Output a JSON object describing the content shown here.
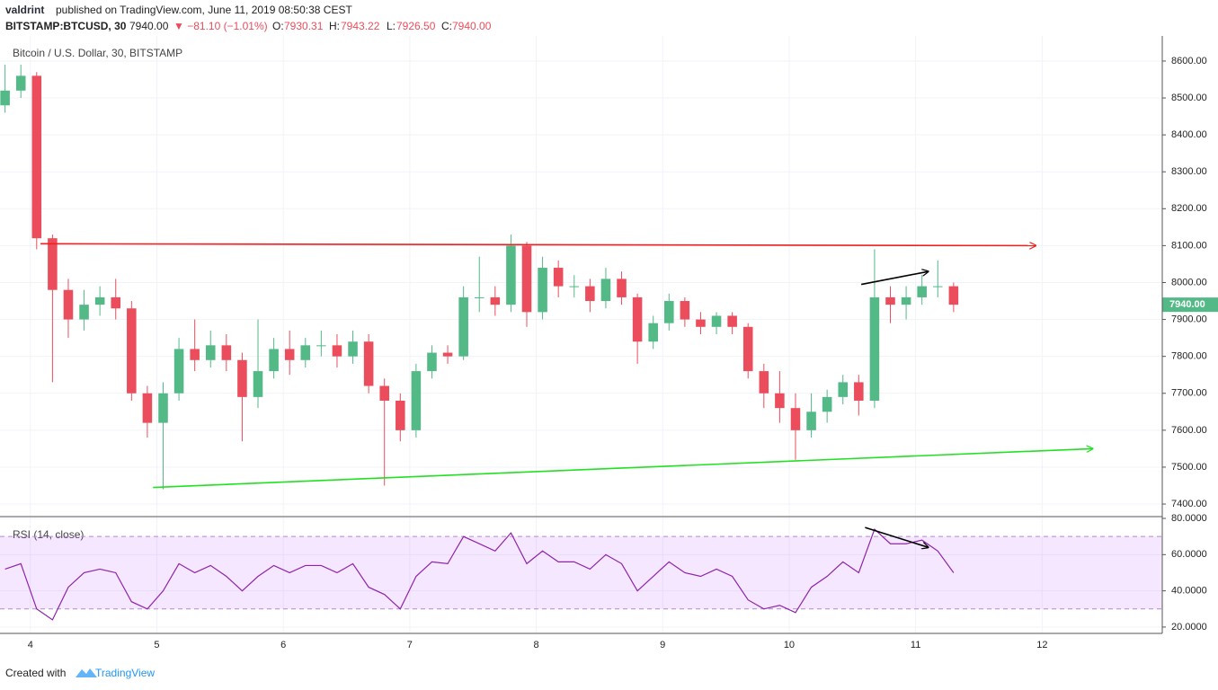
{
  "header": {
    "publisher": "valdrint",
    "published": "published on TradingView.com, June 11, 2019 08:50:38 CEST",
    "symbol": "BITSTAMP:BTCUSD, 30",
    "price": "7940.00",
    "change": "▼ −81.10 (−1.01%)",
    "o_key": "O:",
    "o": "7930.31",
    "h_key": "H:",
    "h": "7943.22",
    "l_key": "L:",
    "l": "7926.50",
    "c_key": "C:",
    "c": "7940.00"
  },
  "footer": {
    "created": "Created with",
    "brand": "TradingView"
  },
  "chart_data": [
    {
      "type": "candlestick",
      "title": "Bitcoin / U.S. Dollar, 30, BITSTAMP",
      "x": [
        3.8,
        3.925,
        4.05,
        4.175,
        4.3,
        4.425,
        4.55,
        4.675,
        4.8,
        4.925,
        5.05,
        5.175,
        5.3,
        5.425,
        5.55,
        5.675,
        5.8,
        5.925,
        6.05,
        6.175,
        6.3,
        6.425,
        6.55,
        6.675,
        6.8,
        6.925,
        7.05,
        7.175,
        7.3,
        7.425,
        7.55,
        7.675,
        7.8,
        7.925,
        8.05,
        8.175,
        8.3,
        8.425,
        8.55,
        8.675,
        8.8,
        8.925,
        9.05,
        9.175,
        9.3,
        9.425,
        9.55,
        9.675,
        9.8,
        9.925,
        10.05,
        10.175,
        10.3,
        10.425,
        10.55,
        10.675,
        10.8,
        10.925,
        11.05,
        11.175,
        11.3
      ],
      "open": [
        8480,
        8520,
        8560,
        8120,
        7980,
        7900,
        7940,
        7960,
        7930,
        7700,
        7620,
        7700,
        7820,
        7790,
        7830,
        7790,
        7690,
        7760,
        7820,
        7790,
        7830,
        7830,
        7800,
        7840,
        7720,
        7680,
        7600,
        7760,
        7810,
        7800,
        7960,
        7960,
        7940,
        8100,
        7920,
        8040,
        7990,
        7990,
        7950,
        8010,
        7960,
        7840,
        7890,
        7950,
        7900,
        7880,
        7910,
        7880,
        7760,
        7700,
        7660,
        7600,
        7650,
        7690,
        7730,
        7680,
        7960,
        7940,
        7960,
        7990,
        7990
      ],
      "high": [
        8590,
        8590,
        8570,
        8130,
        8010,
        7980,
        7990,
        8010,
        7950,
        7720,
        7730,
        7850,
        7900,
        7870,
        7860,
        7810,
        7900,
        7850,
        7870,
        7850,
        7870,
        7860,
        7870,
        7860,
        7740,
        7700,
        7780,
        7830,
        7830,
        7990,
        8070,
        7990,
        8130,
        8110,
        8070,
        8060,
        8020,
        8010,
        8040,
        8030,
        7970,
        7910,
        7970,
        7960,
        7920,
        7920,
        7920,
        7890,
        7780,
        7760,
        7700,
        7700,
        7710,
        7750,
        7750,
        8090,
        7990,
        7990,
        8020,
        8060,
        8000
      ],
      "low": [
        8460,
        8500,
        8090,
        7730,
        7850,
        7870,
        7910,
        7900,
        7680,
        7580,
        7440,
        7680,
        7760,
        7770,
        7760,
        7570,
        7660,
        7740,
        7750,
        7770,
        7800,
        7770,
        7780,
        7700,
        7450,
        7570,
        7580,
        7740,
        7780,
        7790,
        7920,
        7910,
        7920,
        7880,
        7900,
        7960,
        7960,
        7920,
        7930,
        7940,
        7780,
        7820,
        7870,
        7880,
        7860,
        7860,
        7860,
        7740,
        7660,
        7620,
        7520,
        7580,
        7620,
        7670,
        7640,
        7660,
        7890,
        7900,
        7940,
        7960,
        7920
      ],
      "close": [
        8520,
        8560,
        8120,
        7980,
        7900,
        7940,
        7960,
        7930,
        7700,
        7620,
        7700,
        7820,
        7790,
        7830,
        7790,
        7690,
        7760,
        7820,
        7790,
        7830,
        7830,
        7800,
        7840,
        7720,
        7680,
        7600,
        7760,
        7810,
        7800,
        7960,
        7960,
        7940,
        8100,
        7920,
        8040,
        7990,
        7990,
        7950,
        8010,
        7960,
        7840,
        7890,
        7950,
        7900,
        7880,
        7910,
        7880,
        7760,
        7700,
        7660,
        7600,
        7650,
        7690,
        7730,
        7680,
        7960,
        7940,
        7960,
        7990,
        7990,
        7940
      ],
      "up_color": "#53b987",
      "down_color": "#eb4d5c",
      "last_label": "7940.00",
      "xlim": [
        3.76,
        12.95
      ],
      "ylim": [
        7366,
        8668
      ],
      "yticks": [
        {
          "value": 7400,
          "label": "7400.00"
        },
        {
          "value": 7500,
          "label": "7500.00"
        },
        {
          "value": 7600,
          "label": "7600.00"
        },
        {
          "value": 7700,
          "label": "7700.00"
        },
        {
          "value": 7800,
          "label": "7800.00"
        },
        {
          "value": 7900,
          "label": "7900.00"
        },
        {
          "value": 8000,
          "label": "8000.00"
        },
        {
          "value": 8100,
          "label": "8100.00"
        },
        {
          "value": 8200,
          "label": "8200.00"
        },
        {
          "value": 8300,
          "label": "8300.00"
        },
        {
          "value": 8400,
          "label": "8400.00"
        },
        {
          "value": 8500,
          "label": "8500.00"
        },
        {
          "value": 8600,
          "label": "8600.00"
        }
      ],
      "grid": true,
      "drawings": [
        {
          "color": "#f21f1f",
          "x": [
            4.08,
            11.95
          ],
          "y": [
            8105,
            8100
          ]
        },
        {
          "color": "#22e022",
          "x": [
            4.97,
            12.4
          ],
          "y": [
            7445,
            7550
          ]
        },
        {
          "color": "#000000",
          "x": [
            10.57,
            11.1
          ],
          "y": [
            7995,
            8030
          ]
        }
      ]
    },
    {
      "type": "line",
      "title": "RSI (14, close)",
      "x": [
        3.8,
        3.925,
        4.05,
        4.175,
        4.3,
        4.425,
        4.55,
        4.675,
        4.8,
        4.925,
        5.05,
        5.175,
        5.3,
        5.425,
        5.55,
        5.675,
        5.8,
        5.925,
        6.05,
        6.175,
        6.3,
        6.425,
        6.55,
        6.675,
        6.8,
        6.925,
        7.05,
        7.175,
        7.3,
        7.425,
        7.55,
        7.675,
        7.8,
        7.925,
        8.05,
        8.175,
        8.3,
        8.425,
        8.55,
        8.675,
        8.8,
        8.925,
        9.05,
        9.175,
        9.3,
        9.425,
        9.55,
        9.675,
        9.8,
        9.925,
        10.05,
        10.175,
        10.3,
        10.425,
        10.55,
        10.675,
        10.8,
        10.925,
        11.05,
        11.175,
        11.3
      ],
      "values": [
        52,
        55,
        30,
        24,
        42,
        50,
        52,
        50,
        34,
        30,
        40,
        55,
        50,
        54,
        48,
        40,
        48,
        54,
        50,
        54,
        54,
        50,
        55,
        42,
        38,
        30,
        48,
        56,
        55,
        70,
        66,
        62,
        72,
        55,
        62,
        56,
        56,
        52,
        60,
        55,
        40,
        48,
        56,
        50,
        48,
        52,
        48,
        35,
        30,
        32,
        28,
        42,
        48,
        56,
        50,
        74,
        66,
        66,
        68,
        62,
        50
      ],
      "color": "#8e24aa",
      "band": [
        30,
        70
      ],
      "band_color": "#9915ff",
      "xlim": [
        3.76,
        12.95
      ],
      "ylim": [
        16.5,
        80.5
      ],
      "yticks": [
        {
          "value": 20,
          "label": "20.0000"
        },
        {
          "value": 40,
          "label": "40.0000"
        },
        {
          "value": 60,
          "label": "60.0000"
        },
        {
          "value": 80,
          "label": "80.0000"
        }
      ],
      "xticks": [
        4,
        5,
        6,
        7,
        8,
        9,
        10,
        11,
        12
      ],
      "drawings": [
        {
          "color": "#000000",
          "x": [
            10.6,
            11.1
          ],
          "y": [
            75,
            64
          ]
        }
      ]
    }
  ]
}
